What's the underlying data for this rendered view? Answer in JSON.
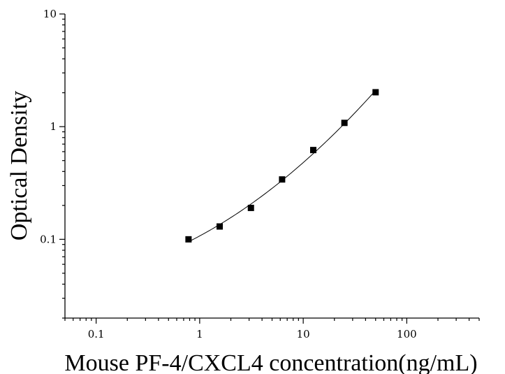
{
  "chart_data": {
    "type": "scatter",
    "title": "",
    "xlabel": "Mouse PF-4/CXCL4 concentration(ng/mL)",
    "ylabel": "Optical Density",
    "x_scale": "log",
    "y_scale": "log",
    "xlim": [
      0.05,
      500
    ],
    "ylim": [
      0.02,
      10
    ],
    "x_ticks": [
      {
        "value": 0.1,
        "label": "0.1"
      },
      {
        "value": 1,
        "label": "1"
      },
      {
        "value": 10,
        "label": "10"
      },
      {
        "value": 100,
        "label": "100"
      }
    ],
    "y_ticks": [
      {
        "value": 0.1,
        "label": "0.1"
      },
      {
        "value": 1,
        "label": "1"
      },
      {
        "value": 10,
        "label": "10"
      }
    ],
    "grid": false,
    "series": [
      {
        "marker": "square",
        "points": [
          {
            "x": 0.78,
            "y": 0.1
          },
          {
            "x": 1.56,
            "y": 0.13
          },
          {
            "x": 3.125,
            "y": 0.19
          },
          {
            "x": 6.25,
            "y": 0.34
          },
          {
            "x": 12.5,
            "y": 0.62
          },
          {
            "x": 25,
            "y": 1.08
          },
          {
            "x": 50,
            "y": 2.02
          }
        ]
      }
    ],
    "fit_curve": true,
    "colors": {
      "marker": "#000000",
      "line": "#000000",
      "axis": "#000000"
    }
  }
}
